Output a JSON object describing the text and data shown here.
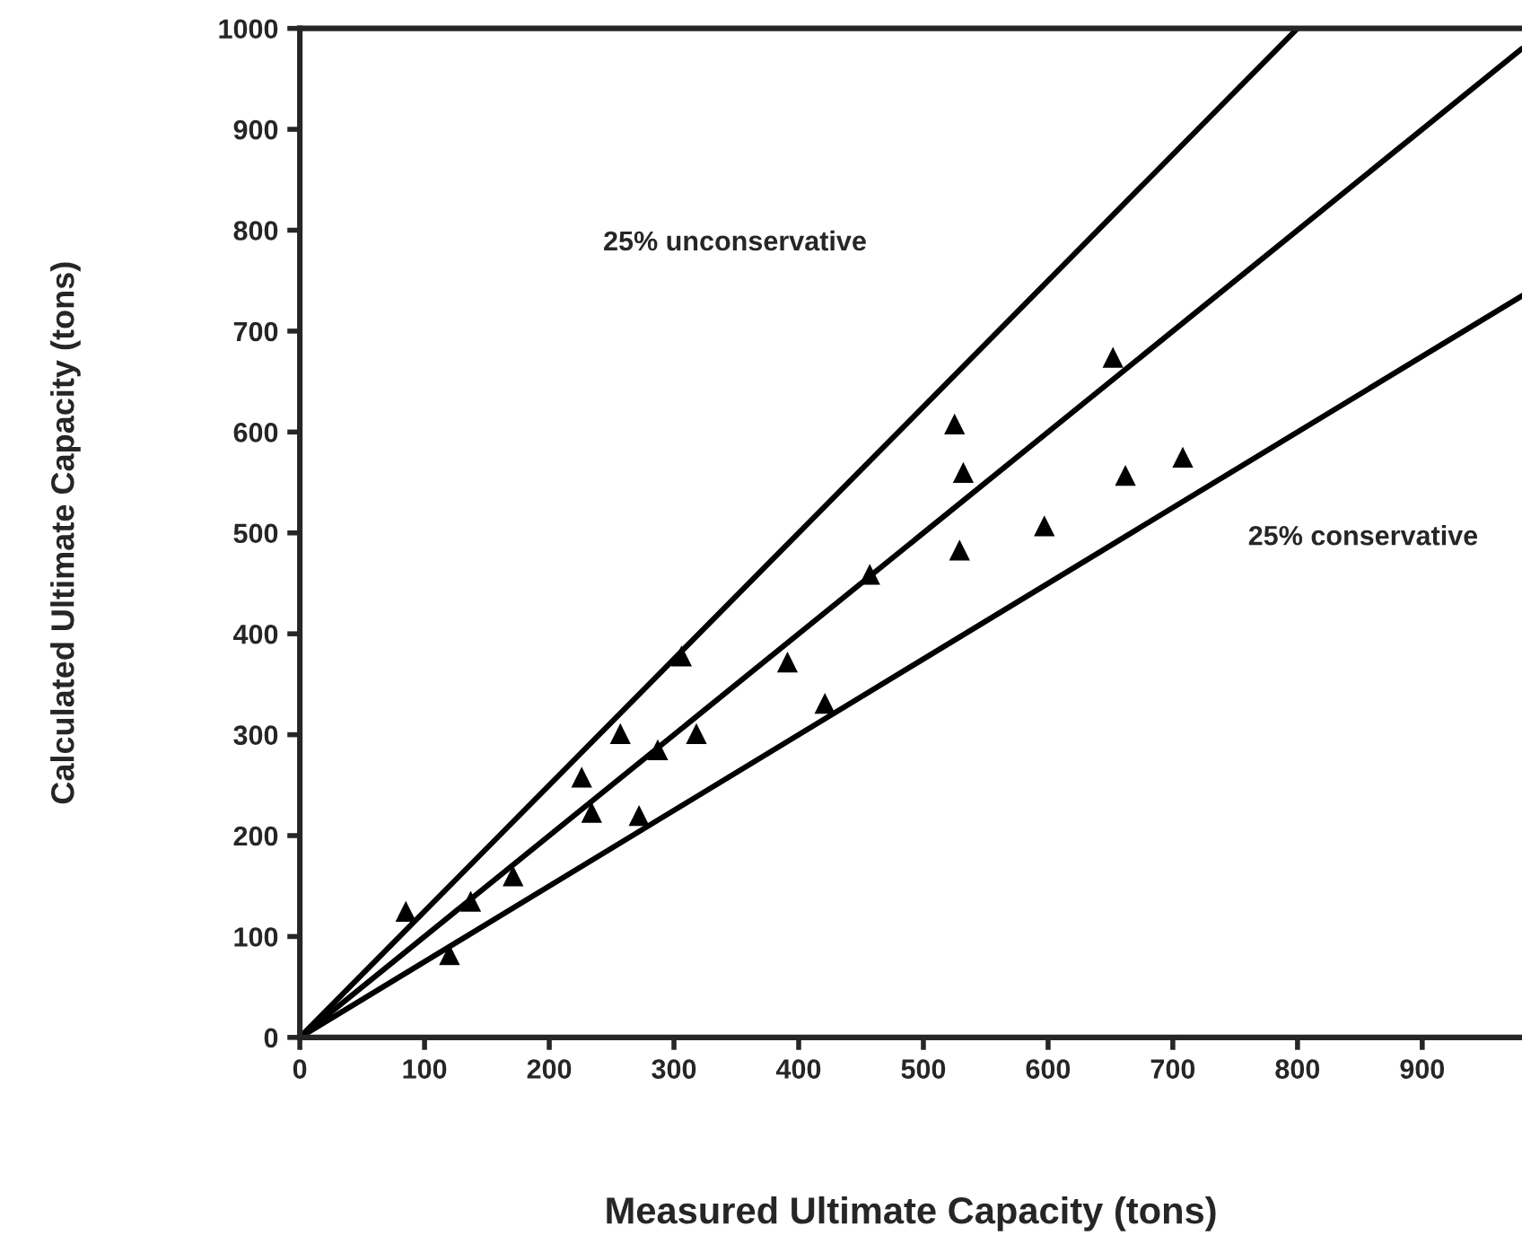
{
  "chart_data": {
    "type": "scatter",
    "xlabel": "Measured Ultimate Capacity (tons)",
    "ylabel": "Calculated Ultimate Capacity (tons)",
    "xlim": [
      0,
      980
    ],
    "ylim": [
      0,
      1000
    ],
    "xticks": [
      0,
      100,
      200,
      300,
      400,
      500,
      600,
      700,
      800,
      900
    ],
    "yticks": [
      0,
      100,
      200,
      300,
      400,
      500,
      600,
      700,
      800,
      900,
      1000
    ],
    "grid": false,
    "marker": "triangle",
    "series": [
      {
        "color": "#000000",
        "x": [
          85,
          120,
          137,
          171,
          226,
          234,
          257,
          272,
          287,
          306,
          318,
          391,
          421,
          457,
          525,
          529,
          532,
          597,
          652,
          662,
          708
        ],
        "values": [
          125,
          82,
          135,
          160,
          258,
          223,
          301,
          220,
          285,
          378,
          301,
          372,
          331,
          459,
          608,
          483,
          560,
          507,
          674,
          557,
          575
        ]
      },
      {
        "type": "line",
        "color": "#000000",
        "line_style": "solid",
        "marker": "none",
        "x": [
          0,
          800
        ],
        "values": [
          0,
          1000
        ]
      },
      {
        "type": "line",
        "color": "#000000",
        "line_style": "solid",
        "marker": "none",
        "x": [
          0,
          980
        ],
        "values": [
          0,
          980
        ]
      },
      {
        "type": "line",
        "color": "#000000",
        "line_style": "solid",
        "marker": "none",
        "x": [
          0,
          980
        ],
        "values": [
          0,
          735
        ]
      }
    ],
    "annotations": [
      "25% unconservative",
      "25% conservative"
    ]
  }
}
